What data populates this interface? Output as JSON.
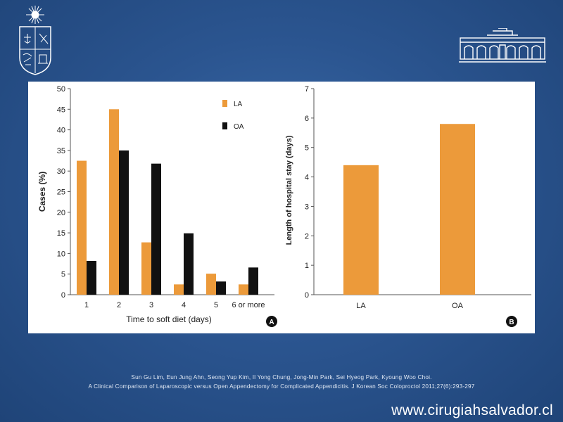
{
  "colors": {
    "la": "#ec9a3a",
    "oa": "#111111",
    "background": "#2b5590"
  },
  "icons": {
    "left_logo": "university-shield-emblem-icon",
    "right_logo": "building-facade-icon"
  },
  "chart_data": [
    {
      "type": "bar",
      "panel_label": "A",
      "title": "",
      "xlabel": "Time to soft diet (days)",
      "ylabel": "Cases (%)",
      "categories": [
        "1",
        "2",
        "3",
        "4",
        "5",
        "6 or more"
      ],
      "series": [
        {
          "name": "LA",
          "values": [
            32.5,
            45,
            12.7,
            2.5,
            5.1,
            2.5
          ]
        },
        {
          "name": "OA",
          "values": [
            8.2,
            35,
            31.8,
            14.9,
            3.2,
            6.6
          ]
        }
      ],
      "ylim": [
        0,
        50
      ],
      "yticks": [
        0,
        5,
        10,
        15,
        20,
        25,
        30,
        35,
        40,
        45,
        50
      ],
      "legend_position": "top-right",
      "grid": false
    },
    {
      "type": "bar",
      "panel_label": "B",
      "title": "",
      "xlabel": "",
      "ylabel": "Length of hospital stay (days)",
      "categories": [
        "LA",
        "OA"
      ],
      "values": [
        4.4,
        5.8
      ],
      "ylim": [
        0,
        7
      ],
      "yticks": [
        0,
        1,
        2,
        3,
        4,
        5,
        6,
        7
      ],
      "grid": false
    }
  ],
  "citation": {
    "line1": "Sun Gu Lim, Eun Jung Ahn, Seong Yup Kim, Il Yong Chung, Jong-Min Park, Sei Hyeog Park, Kyoung Woo Choi.",
    "line2": "A Clinical Comparison of Laparoscopic versus Open Appendectomy for Complicated Appendicitis. J Korean Soc Coloproctol 2011;27(6):293-297"
  },
  "website": "www.cirugiahsalvador.cl"
}
